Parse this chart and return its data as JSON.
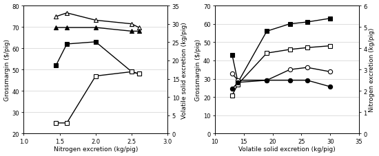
{
  "panel_a": {
    "xlabel": "Nitrogen excretion (kg/pig)",
    "ylabel_left": "Grossmargin ($/pig)",
    "ylabel_right": "Volatile solid excretion (kg/pig)",
    "xlim": [
      1,
      3
    ],
    "ylim_left": [
      20,
      80
    ],
    "ylim_right": [
      0,
      35
    ],
    "xticks": [
      1,
      1.5,
      2,
      2.5,
      3
    ],
    "yticks_left": [
      20,
      30,
      40,
      50,
      60,
      70,
      80
    ],
    "yticks_right": [
      0,
      5,
      10,
      15,
      20,
      25,
      30,
      35
    ],
    "left_series": [
      {
        "x": [
          1.45,
          1.6,
          2.0,
          2.5,
          2.6
        ],
        "y": [
          52,
          62,
          63,
          49,
          48
        ],
        "marker": "s",
        "filled": true
      },
      {
        "x": [
          1.45,
          1.6,
          2.0,
          2.5,
          2.6
        ],
        "y": [
          25,
          25,
          47,
          49,
          48
        ],
        "marker": "s",
        "filled": false
      }
    ],
    "right_series": [
      {
        "x": [
          1.45,
          1.6,
          2.0,
          2.5,
          2.6
        ],
        "y": [
          32,
          33,
          31,
          30,
          29
        ],
        "marker": "^",
        "filled": false
      },
      {
        "x": [
          1.45,
          1.6,
          2.0,
          2.5,
          2.6
        ],
        "y": [
          29,
          29,
          29,
          28,
          28
        ],
        "marker": "^",
        "filled": true
      }
    ]
  },
  "panel_b": {
    "xlabel": "Volatile solid excretion (kg/pig)",
    "ylabel_left": "Grossmargin ($/pig)",
    "ylabel_right": "Nitrogen excretion (kg/pig)",
    "xlim": [
      10,
      35
    ],
    "ylim_left": [
      0,
      70
    ],
    "ylim_right": [
      0,
      6
    ],
    "xticks": [
      10,
      15,
      20,
      25,
      30,
      35
    ],
    "yticks_left": [
      0,
      10,
      20,
      30,
      40,
      50,
      60,
      70
    ],
    "yticks_right": [
      0,
      1,
      2,
      3,
      4,
      5,
      6
    ],
    "left_series": [
      {
        "x": [
          13,
          14,
          19,
          23,
          26,
          30
        ],
        "y": [
          43,
          28,
          56,
          60,
          61,
          63
        ],
        "marker": "s",
        "filled": true
      },
      {
        "x": [
          13,
          14,
          19,
          23,
          26,
          30
        ],
        "y": [
          21,
          27,
          44,
          46,
          47,
          48
        ],
        "marker": "s",
        "filled": false
      }
    ],
    "right_series": [
      {
        "x": [
          13,
          14,
          19,
          23,
          26,
          30
        ],
        "y": [
          2.8,
          2.5,
          2.5,
          3.0,
          3.1,
          2.9
        ],
        "marker": "o",
        "filled": false
      },
      {
        "x": [
          13,
          14,
          19,
          23,
          26,
          30
        ],
        "y": [
          2.1,
          2.4,
          2.5,
          2.5,
          2.5,
          2.2
        ],
        "marker": "o",
        "filled": true
      }
    ]
  },
  "line_color": "#000000",
  "marker_size": 4.5,
  "font_size": 6.5
}
